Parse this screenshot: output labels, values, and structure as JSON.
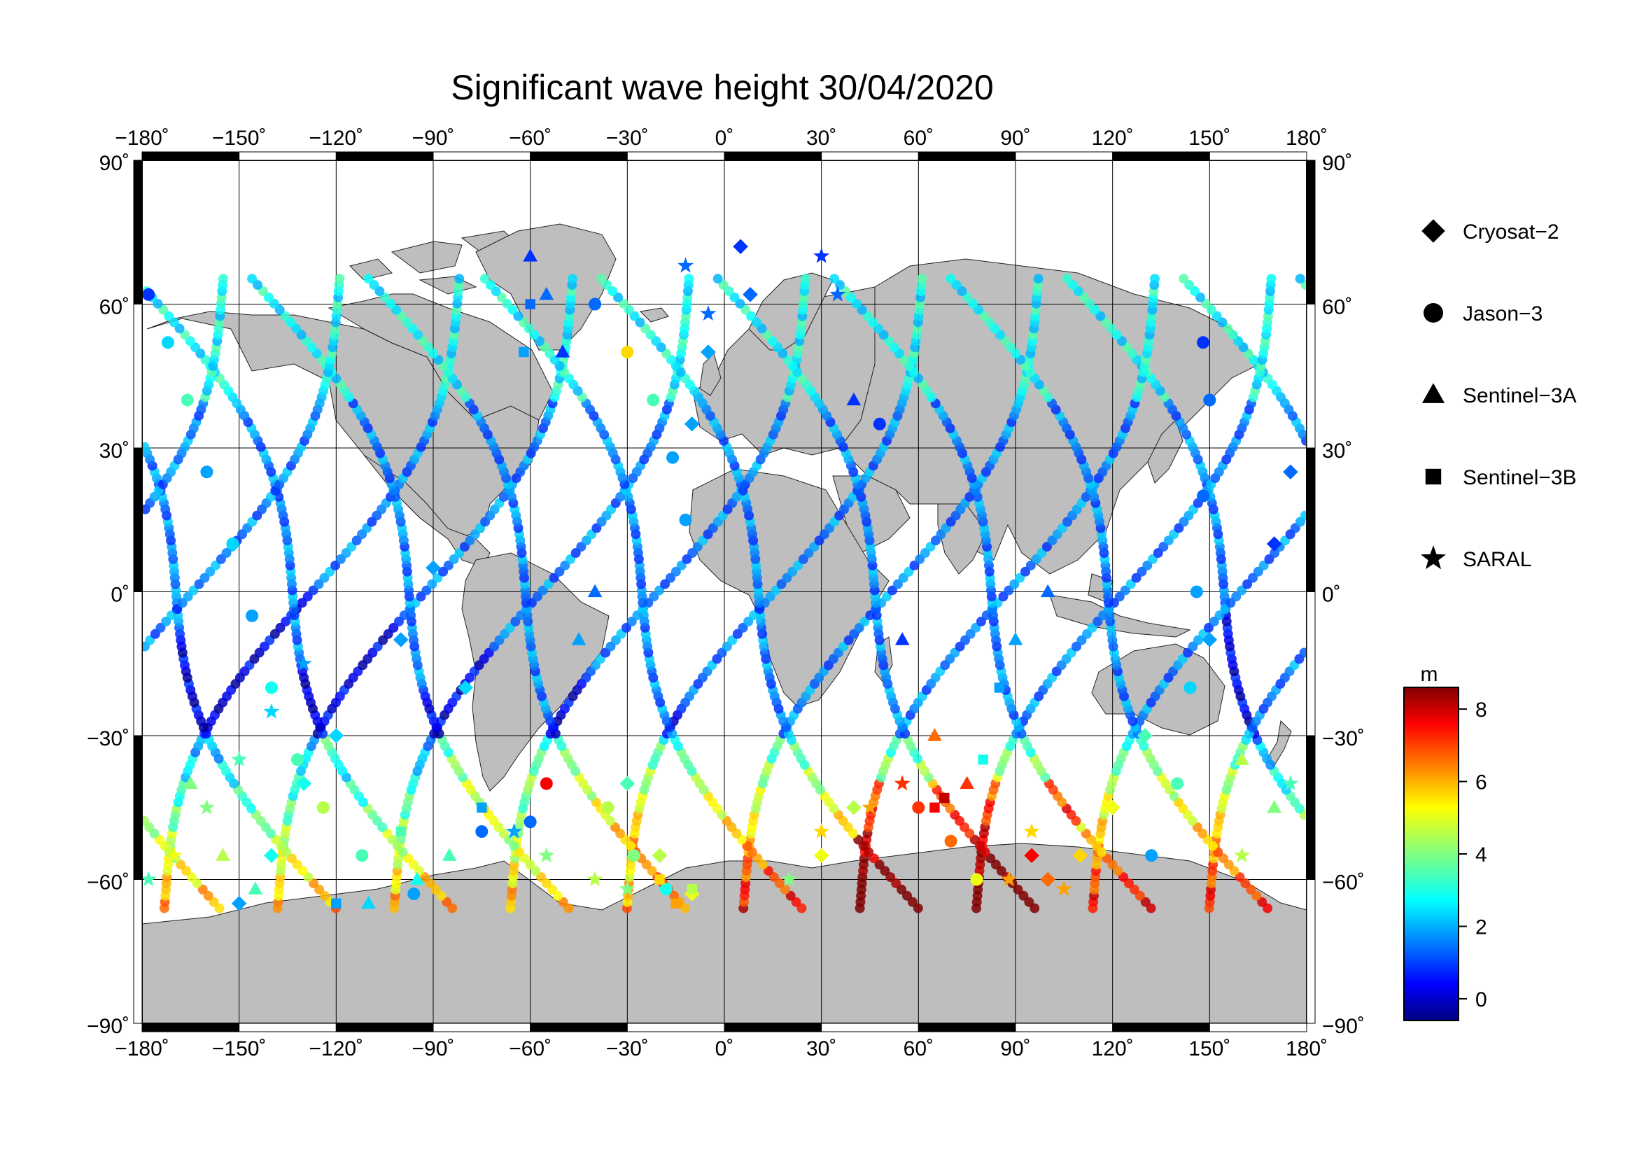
{
  "title": "Significant wave height 30/04/2020",
  "map": {
    "lon_ticks": [
      {
        "value": -180,
        "label": "−180˚"
      },
      {
        "value": -150,
        "label": "−150˚"
      },
      {
        "value": -120,
        "label": "−120˚"
      },
      {
        "value": -90,
        "label": "−90˚"
      },
      {
        "value": -60,
        "label": "−60˚"
      },
      {
        "value": -30,
        "label": "−30˚"
      },
      {
        "value": 0,
        "label": "0˚"
      },
      {
        "value": 30,
        "label": "30˚"
      },
      {
        "value": 60,
        "label": "60˚"
      },
      {
        "value": 90,
        "label": "90˚"
      },
      {
        "value": 120,
        "label": "120˚"
      },
      {
        "value": 150,
        "label": "150˚"
      },
      {
        "value": 180,
        "label": "180˚"
      }
    ],
    "lat_ticks": [
      {
        "value": 90,
        "label": "90˚"
      },
      {
        "value": 60,
        "label": "60˚"
      },
      {
        "value": 30,
        "label": "30˚"
      },
      {
        "value": 0,
        "label": "0˚"
      },
      {
        "value": -30,
        "label": "−30˚"
      },
      {
        "value": -60,
        "label": "−60˚"
      },
      {
        "value": -90,
        "label": "−90˚"
      }
    ],
    "land_color": "#bebebe",
    "ocean_color": "#ffffff",
    "grid": true
  },
  "legend": {
    "items": [
      {
        "name": "Cryosat−2",
        "marker": "diamond"
      },
      {
        "name": "Jason−3",
        "marker": "circle"
      },
      {
        "name": "Sentinel−3A",
        "marker": "triangle"
      },
      {
        "name": "Sentinel−3B",
        "marker": "square"
      },
      {
        "name": "SARAL",
        "marker": "star"
      }
    ]
  },
  "colorbar": {
    "unit": "m",
    "min": -0.6,
    "max": 8.6,
    "ticks": [
      {
        "value": 0,
        "label": "0"
      },
      {
        "value": 2,
        "label": "2"
      },
      {
        "value": 4,
        "label": "4"
      },
      {
        "value": 6,
        "label": "6"
      },
      {
        "value": 8,
        "label": "8"
      }
    ],
    "colormap": "jet"
  },
  "chart_data": {
    "type": "scatter",
    "title": "Significant wave height 30/04/2020",
    "xlabel": "",
    "ylabel": "",
    "xlim": [
      -180,
      180
    ],
    "ylim": [
      -90,
      90
    ],
    "value_unit": "m",
    "series": [
      {
        "name": "Jason−3",
        "marker": "circle",
        "points": [
          [
            -178,
            62,
            1.0
          ],
          [
            -172,
            52,
            2.5
          ],
          [
            -166,
            40,
            3.5
          ],
          [
            -160,
            25,
            2.0
          ],
          [
            -152,
            10,
            2.5
          ],
          [
            -146,
            -5,
            2.0
          ],
          [
            -140,
            -20,
            3.0
          ],
          [
            -132,
            -35,
            3.5
          ],
          [
            -124,
            -45,
            4.5
          ],
          [
            -112,
            -55,
            3.5
          ],
          [
            -96,
            -63,
            2.0
          ],
          [
            -40,
            60,
            1.5
          ],
          [
            -30,
            50,
            5.5
          ],
          [
            -22,
            40,
            3.5
          ],
          [
            -16,
            28,
            2.0
          ],
          [
            -12,
            15,
            2.0
          ],
          [
            -36,
            -45,
            4.5
          ],
          [
            -28,
            -55,
            4.0
          ],
          [
            -18,
            -62,
            3.0
          ],
          [
            48,
            35,
            1.0
          ],
          [
            60,
            -45,
            7.0
          ],
          [
            70,
            -52,
            6.5
          ],
          [
            78,
            -60,
            5.0
          ],
          [
            148,
            52,
            1.0
          ],
          [
            150,
            40,
            1.5
          ],
          [
            148,
            20,
            1.5
          ],
          [
            146,
            0,
            2.0
          ],
          [
            144,
            -20,
            2.5
          ],
          [
            140,
            -40,
            3.5
          ],
          [
            132,
            -55,
            2.0
          ],
          [
            -55,
            -40,
            7.5
          ],
          [
            -60,
            -48,
            1.5
          ],
          [
            -75,
            -50,
            1.5
          ]
        ]
      },
      {
        "name": "Cryosat−2",
        "marker": "diamond",
        "points": [
          [
            5,
            72,
            1.0
          ],
          [
            8,
            62,
            1.5
          ],
          [
            -5,
            50,
            2.0
          ],
          [
            -10,
            35,
            2.0
          ],
          [
            -150,
            -65,
            2.0
          ],
          [
            -140,
            -55,
            3.0
          ],
          [
            -130,
            -40,
            3.0
          ],
          [
            -120,
            -30,
            2.5
          ],
          [
            -100,
            -10,
            2.0
          ],
          [
            -90,
            5,
            2.0
          ],
          [
            -80,
            -20,
            2.5
          ],
          [
            -30,
            -40,
            3.5
          ],
          [
            -20,
            -55,
            4.5
          ],
          [
            -10,
            -63,
            5.0
          ],
          [
            30,
            -55,
            5.0
          ],
          [
            40,
            -45,
            4.5
          ],
          [
            95,
            -55,
            7.5
          ],
          [
            100,
            -60,
            6.5
          ],
          [
            110,
            -55,
            5.5
          ],
          [
            120,
            -45,
            5.0
          ],
          [
            130,
            -30,
            3.5
          ],
          [
            150,
            -10,
            2.0
          ],
          [
            170,
            10,
            1.0
          ],
          [
            175,
            25,
            1.5
          ]
        ]
      },
      {
        "name": "Sentinel−3A",
        "marker": "triangle",
        "points": [
          [
            -60,
            70,
            1.0
          ],
          [
            -55,
            62,
            1.5
          ],
          [
            -50,
            50,
            1.0
          ],
          [
            -165,
            -40,
            4.0
          ],
          [
            -155,
            -55,
            4.5
          ],
          [
            -145,
            -62,
            3.5
          ],
          [
            -110,
            -65,
            2.5
          ],
          [
            -95,
            -60,
            3.0
          ],
          [
            -85,
            -55,
            3.5
          ],
          [
            -45,
            -10,
            2.0
          ],
          [
            -40,
            0,
            1.5
          ],
          [
            40,
            40,
            1.0
          ],
          [
            55,
            -10,
            1.0
          ],
          [
            65,
            -30,
            6.5
          ],
          [
            75,
            -40,
            7.0
          ],
          [
            90,
            -10,
            2.0
          ],
          [
            100,
            0,
            1.5
          ],
          [
            160,
            -35,
            4.5
          ],
          [
            170,
            -45,
            4.0
          ]
        ]
      },
      {
        "name": "Sentinel−3B",
        "marker": "square",
        "points": [
          [
            -60,
            60,
            1.5
          ],
          [
            -62,
            50,
            2.0
          ],
          [
            -120,
            -65,
            2.0
          ],
          [
            -100,
            -50,
            3.5
          ],
          [
            -20,
            -60,
            5.5
          ],
          [
            -15,
            -65,
            6.0
          ],
          [
            -10,
            -62,
            4.5
          ],
          [
            65,
            -45,
            7.5
          ],
          [
            68,
            -43,
            8.0
          ],
          [
            80,
            -35,
            3.0
          ],
          [
            85,
            -20,
            2.0
          ],
          [
            -75,
            -45,
            2.0
          ]
        ]
      },
      {
        "name": "SARAL",
        "marker": "star",
        "points": [
          [
            -12,
            68,
            1.5
          ],
          [
            -5,
            58,
            1.5
          ],
          [
            30,
            70,
            1.0
          ],
          [
            35,
            62,
            1.5
          ],
          [
            -178,
            -60,
            3.5
          ],
          [
            -170,
            -55,
            5.0
          ],
          [
            -160,
            -45,
            4.0
          ],
          [
            -150,
            -35,
            3.5
          ],
          [
            -140,
            -25,
            2.5
          ],
          [
            -130,
            -15,
            2.0
          ],
          [
            -65,
            -50,
            2.0
          ],
          [
            -55,
            -55,
            4.0
          ],
          [
            -40,
            -60,
            4.5
          ],
          [
            -30,
            -62,
            4.0
          ],
          [
            20,
            -60,
            4.0
          ],
          [
            30,
            -50,
            5.5
          ],
          [
            45,
            -45,
            6.0
          ],
          [
            55,
            -40,
            7.0
          ],
          [
            88,
            -60,
            6.0
          ],
          [
            95,
            -50,
            5.5
          ],
          [
            105,
            -62,
            6.0
          ],
          [
            160,
            -55,
            4.5
          ],
          [
            175,
            -40,
            3.5
          ]
        ]
      }
    ]
  }
}
